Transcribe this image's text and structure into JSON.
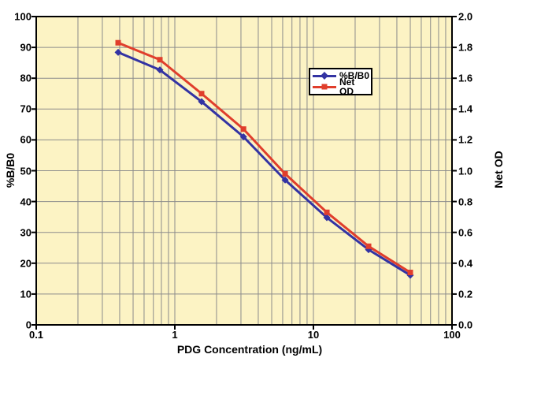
{
  "chart_data": {
    "type": "line",
    "x_scale": "log",
    "x": [
      0.39,
      0.78,
      1.56,
      3.13,
      6.25,
      12.5,
      25,
      50
    ],
    "series": [
      {
        "name": "%B/B0",
        "axis": "left",
        "color": "#3333A3",
        "marker": "diamond",
        "values": [
          88.4,
          82.7,
          72.4,
          61.0,
          47.0,
          34.8,
          24.4,
          16.1
        ]
      },
      {
        "name": "Net OD",
        "axis": "right",
        "color": "#E03E2C",
        "marker": "square",
        "values": [
          1.83,
          1.72,
          1.5,
          1.27,
          0.98,
          0.73,
          0.51,
          0.34
        ]
      }
    ],
    "title": "",
    "xlabel": "PDG Concentration (ng/mL)",
    "ylabel_left": "%B/B0",
    "ylabel_right": "Net OD",
    "xlim": [
      0.1,
      100
    ],
    "ylim_left": [
      0,
      100
    ],
    "ylim_right": [
      0.0,
      2.0
    ],
    "x_ticks": [
      "0.1",
      "1",
      "10",
      "100"
    ],
    "y_ticks_left": [
      "0",
      "10",
      "20",
      "30",
      "40",
      "50",
      "60",
      "70",
      "80",
      "90",
      "100"
    ],
    "y_ticks_right": [
      "0.0",
      "0.2",
      "0.4",
      "0.6",
      "0.8",
      "1.0",
      "1.2",
      "1.4",
      "1.6",
      "1.8",
      "2.0"
    ],
    "grid": true,
    "grid_color": "#8B8B8B",
    "plot_bg": "#FCF3C4",
    "frame_color": "#000000",
    "legend_position": "upper-middle",
    "legend": [
      "%B/B0",
      "Net OD"
    ]
  }
}
